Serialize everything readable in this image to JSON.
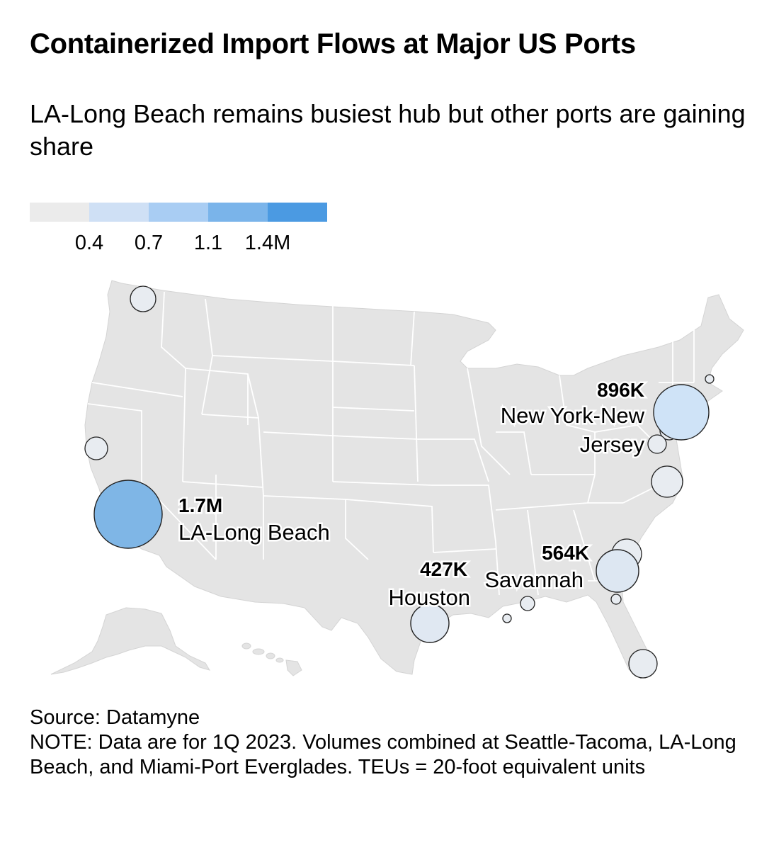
{
  "title": "Containerized Import Flows at Major US Ports",
  "subtitle": "LA-Long Beach remains busiest hub but other ports are gaining share",
  "legend": {
    "colors": [
      "#ebebeb",
      "#cfe0f5",
      "#a9cdf3",
      "#7ab4ea",
      "#4b9ae2"
    ],
    "labels": [
      "0.4",
      "0.7",
      "1.1",
      "1.4M"
    ]
  },
  "ports": [
    {
      "name": "LA-Long Beach",
      "value_label": "1.7M",
      "teu": 1700000,
      "labeled": true,
      "color": "#7fb6e6"
    },
    {
      "name": "New York-New Jersey",
      "name_lines": [
        "New York-New",
        "Jersey"
      ],
      "value_label": "896K",
      "teu": 896000,
      "labeled": true,
      "color": "#cfe3f7"
    },
    {
      "name": "Savannah",
      "value_label": "564K",
      "teu": 564000,
      "labeled": true,
      "color": "#dde7f2"
    },
    {
      "name": "Houston",
      "value_label": "427K",
      "teu": 427000,
      "labeled": true,
      "color": "#e0e8f2"
    },
    {
      "name": "",
      "labeled": false
    },
    {
      "name": "",
      "labeled": false
    },
    {
      "name": "",
      "labeled": false
    },
    {
      "name": "",
      "labeled": false
    },
    {
      "name": "",
      "labeled": false
    },
    {
      "name": "",
      "labeled": false
    },
    {
      "name": "",
      "labeled": false
    },
    {
      "name": "",
      "labeled": false
    },
    {
      "name": "",
      "labeled": false
    },
    {
      "name": "",
      "labeled": false
    }
  ],
  "map_colors": {
    "land": "#e4e4e4",
    "border": "#ffffff"
  },
  "source": "Source: Datamyne",
  "note": "NOTE: Data are for 1Q 2023. Volumes combined at Seattle-Tacoma, LA-Long Beach, and Miami-Port Everglades. TEUs = 20-foot equivalent units"
}
